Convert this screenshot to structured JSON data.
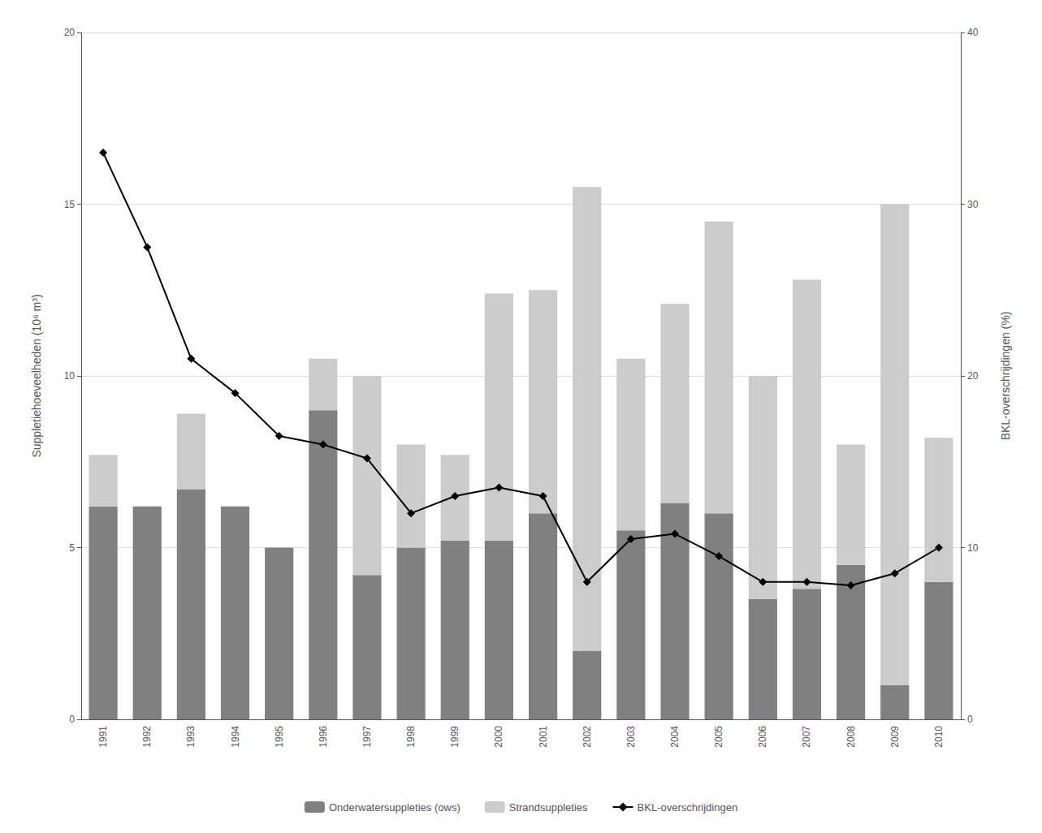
{
  "chart_data": {
    "type": "bar",
    "categories": [
      "1991",
      "1992",
      "1993",
      "1994",
      "1995",
      "1996",
      "1997",
      "1998",
      "1999",
      "2000",
      "2001",
      "2002",
      "2003",
      "2004",
      "2005",
      "2006",
      "2007",
      "2008",
      "2009",
      "2010"
    ],
    "series": [
      {
        "name": "Onderwatersuppleties (ows)",
        "type": "bar",
        "color": "#808080",
        "values": [
          6.2,
          6.2,
          6.7,
          6.2,
          5.0,
          9.0,
          4.2,
          5.0,
          5.2,
          5.2,
          6.0,
          2.0,
          5.5,
          6.3,
          6.0,
          3.5,
          3.8,
          4.5,
          1.0,
          4.0
        ]
      },
      {
        "name": "Strandsuppleties",
        "type": "bar",
        "color": "#cccccc",
        "values": [
          1.5,
          0.0,
          2.2,
          0.0,
          0.0,
          1.5,
          5.8,
          3.0,
          2.5,
          7.2,
          6.5,
          13.5,
          5.0,
          5.8,
          8.5,
          6.5,
          9.0,
          3.5,
          14.0,
          4.2
        ]
      },
      {
        "name": "BKL-overschrijdingen",
        "type": "line",
        "axis": "y2",
        "color": "#000000",
        "marker": "diamond",
        "values": [
          33.0,
          27.5,
          21.0,
          19.0,
          16.5,
          16.0,
          15.2,
          12.0,
          13.0,
          13.5,
          13.0,
          8.0,
          10.5,
          10.8,
          9.5,
          8.0,
          8.0,
          7.8,
          8.5,
          10.0
        ]
      }
    ],
    "ylabel": "Suppletie­hoeveelheden (10⁶ m³)",
    "y2label": "BKL-overschrijdingen (%)",
    "ylim": [
      0,
      20
    ],
    "yticks": [
      0,
      5,
      10,
      15,
      20
    ],
    "y2lim": [
      0,
      40
    ],
    "y2ticks": [
      0,
      10,
      20,
      30,
      40
    ],
    "stacked": true,
    "grid": true,
    "legend": "bottom"
  }
}
